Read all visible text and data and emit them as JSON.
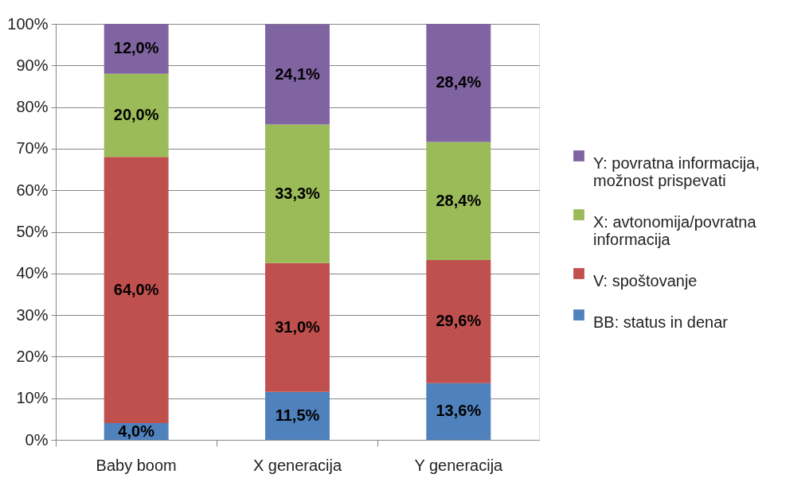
{
  "chart_data": {
    "type": "bar",
    "stacked": true,
    "categories": [
      "Baby boom",
      "X generacija",
      "Y generacija"
    ],
    "series": [
      {
        "name": "BB: status in denar",
        "color": "#4f81bd",
        "values": [
          4.0,
          11.5,
          13.6
        ],
        "value_labels": [
          "4,0%",
          "11,5%",
          "13,6%"
        ]
      },
      {
        "name": "V: spoštovanje",
        "color": "#c0504d",
        "values": [
          64.0,
          31.0,
          29.6
        ],
        "value_labels": [
          "64,0%",
          "31,0%",
          "29,6%"
        ]
      },
      {
        "name": "X: avtonomija/povratna informacija",
        "color": "#9bbb59",
        "values": [
          20.0,
          33.3,
          28.4
        ],
        "value_labels": [
          "20,0%",
          "33,3%",
          "28,4%"
        ]
      },
      {
        "name": "Y: povratna informacija, možnost prispevati",
        "color": "#8064a2",
        "values": [
          12.0,
          24.1,
          28.4
        ],
        "value_labels": [
          "12,0%",
          "24,1%",
          "28,4%"
        ]
      }
    ],
    "ylim": [
      0,
      100
    ],
    "yticks": [
      {
        "value": 0,
        "label": "0%"
      },
      {
        "value": 10,
        "label": "10%"
      },
      {
        "value": 20,
        "label": "20%"
      },
      {
        "value": 30,
        "label": "30%"
      },
      {
        "value": 40,
        "label": "40%"
      },
      {
        "value": 50,
        "label": "50%"
      },
      {
        "value": 60,
        "label": "60%"
      },
      {
        "value": 70,
        "label": "70%"
      },
      {
        "value": 80,
        "label": "80%"
      },
      {
        "value": 90,
        "label": "90%"
      },
      {
        "value": 100,
        "label": "100%"
      }
    ],
    "grid": "y",
    "legend": "right"
  }
}
